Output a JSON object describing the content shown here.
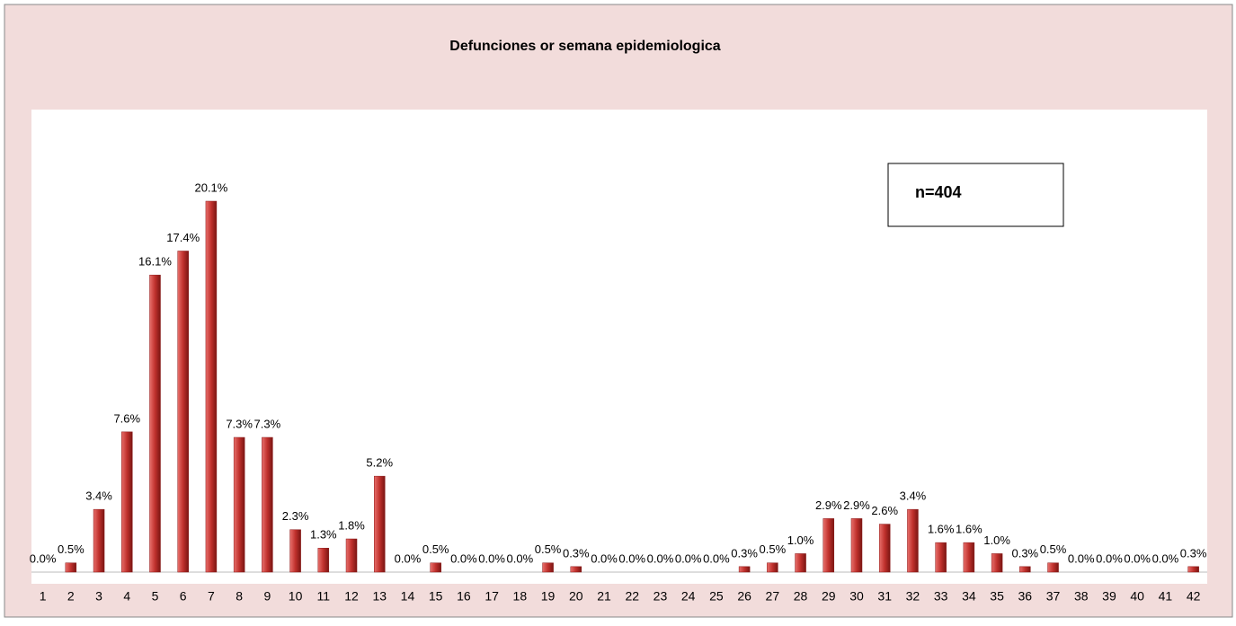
{
  "chart_data": {
    "type": "bar",
    "title": "Defunciones or semana epidemiologica",
    "annotation": "n=404",
    "categories": [
      "1",
      "2",
      "3",
      "4",
      "5",
      "6",
      "7",
      "8",
      "9",
      "10",
      "11",
      "12",
      "13",
      "14",
      "15",
      "16",
      "17",
      "18",
      "19",
      "20",
      "21",
      "22",
      "23",
      "24",
      "25",
      "26",
      "27",
      "28",
      "29",
      "30",
      "31",
      "32",
      "33",
      "34",
      "35",
      "36",
      "37",
      "38",
      "39",
      "40",
      "41",
      "42"
    ],
    "values": [
      0,
      0.5,
      3.4,
      7.6,
      16.1,
      17.4,
      20.1,
      7.3,
      7.3,
      2.3,
      1.3,
      1.8,
      5.2,
      0,
      0.5,
      0,
      0,
      0,
      0.5,
      0.3,
      0,
      0,
      0,
      0,
      0,
      0.3,
      0.5,
      1.0,
      2.9,
      2.9,
      2.6,
      3.4,
      1.6,
      1.6,
      1.0,
      0.3,
      0.5,
      0,
      0,
      0,
      0,
      0.3
    ],
    "value_labels": [
      "0.0%",
      "0.5%",
      "3.4%",
      "7.6%",
      "16.1%",
      "17.4%",
      "20.1%",
      "7.3%",
      "7.3%",
      "2.3%",
      "1.3%",
      "1.8%",
      "5.2%",
      "0.0%",
      "0.5%",
      "0.0%",
      "0.0%",
      "0.0%",
      "0.5%",
      "0.3%",
      "0.0%",
      "0.0%",
      "0.0%",
      "0.0%",
      "0.0%",
      "0.3%",
      "0.5%",
      "1.0%",
      "2.9%",
      "2.9%",
      "2.6%",
      "3.4%",
      "1.6%",
      "1.6%",
      "1.0%",
      "0.3%",
      "0.5%",
      "0.0%",
      "0.0%",
      "0.0%",
      "0.0%",
      "0.3%"
    ],
    "color": "#c0504d"
  }
}
